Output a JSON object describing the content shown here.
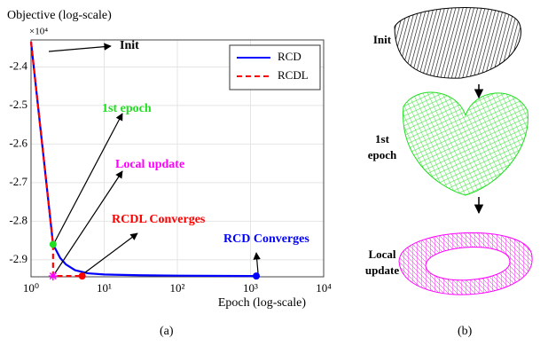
{
  "chart_data": {
    "type": "line",
    "y_label": "Objective (log-scale)",
    "y_multiplier": "×10⁴",
    "x_label": "Epoch (log-scale)",
    "log_x": true,
    "grid": true,
    "legend": "upper right",
    "xlim": [
      1,
      10000
    ],
    "ylim": [
      -2.944,
      -2.33
    ],
    "xticks": [
      {
        "value": 1,
        "label": "10⁰"
      },
      {
        "value": 10,
        "label": "10¹"
      },
      {
        "value": 100,
        "label": "10²"
      },
      {
        "value": 1000,
        "label": "10³"
      },
      {
        "value": 10000,
        "label": "10⁴"
      }
    ],
    "yticks": [
      -2.4,
      -2.5,
      -2.6,
      -2.7,
      -2.8,
      -2.9
    ],
    "series": [
      {
        "name": "RCD",
        "color": "#0000ff",
        "dash": false,
        "x": [
          1,
          2,
          2.5,
          3,
          4,
          6,
          10,
          30,
          100,
          1000,
          1200
        ],
        "values": [
          -2.335,
          -2.86,
          -2.895,
          -2.912,
          -2.927,
          -2.935,
          -2.938,
          -2.94,
          -2.941,
          -2.942,
          -2.942
        ]
      },
      {
        "name": "RCDL",
        "color": "#ff0000",
        "dash": true,
        "x": [
          1,
          2,
          2,
          5
        ],
        "values": [
          -2.335,
          -2.86,
          -2.942,
          -2.942
        ]
      }
    ],
    "annotations": [
      {
        "text": "Init",
        "color": "#000000"
      },
      {
        "text": "1st epoch",
        "color": "#22dd22",
        "x": 2,
        "y": -2.86,
        "marker": "dot"
      },
      {
        "text": "Local update",
        "color": "#ff00ff",
        "x": 2,
        "y": -2.942,
        "marker": "star"
      },
      {
        "text": "RCDL Converges",
        "color": "#ff0000",
        "x": 5,
        "y": -2.942,
        "marker": "dot"
      },
      {
        "text": "RCD Converges",
        "color": "#0000ff",
        "x": 1200,
        "y": -2.942,
        "marker": "dot"
      }
    ]
  },
  "panel_b": {
    "stages": [
      "Init",
      "1st epoch",
      "Local update"
    ]
  },
  "captions": [
    "(a)",
    "(b)"
  ]
}
